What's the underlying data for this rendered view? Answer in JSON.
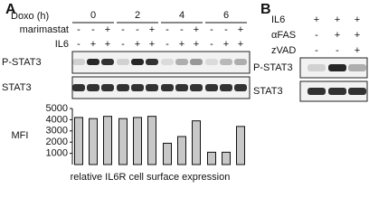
{
  "panel_a": {
    "label": "A",
    "doxo_label": "Doxo (h)",
    "times": [
      "0",
      "2",
      "4",
      "6"
    ],
    "rows": [
      {
        "label": "marimastat",
        "signs": [
          "-",
          "-",
          "+",
          "-",
          "-",
          "+",
          "-",
          "-",
          "+",
          "-",
          "-",
          "+"
        ]
      },
      {
        "label": "IL6",
        "signs": [
          "-",
          "+",
          "+",
          "-",
          "+",
          "+",
          "-",
          "+",
          "+",
          "-",
          "+",
          "+"
        ]
      }
    ],
    "blots": [
      "P-STAT3",
      "STAT3"
    ]
  },
  "chart_data": {
    "type": "bar",
    "y_label": "MFI",
    "x_label": "relative IL6R cell surface expression",
    "values": [
      4200,
      4100,
      4300,
      4100,
      4200,
      4300,
      1900,
      2500,
      3900,
      1100,
      1100,
      3400
    ],
    "color": "#c8c8c8",
    "ylim": [
      0,
      5000
    ],
    "yticks": [
      1000,
      2000,
      3000,
      4000,
      5000
    ]
  },
  "panel_b": {
    "label": "B",
    "rows": [
      {
        "label": "IL6",
        "signs": [
          "+",
          "+",
          "+"
        ]
      },
      {
        "label": "αFAS",
        "signs": [
          "-",
          "+",
          "+"
        ]
      },
      {
        "label": "zVAD",
        "signs": [
          "-",
          "-",
          "+"
        ]
      }
    ],
    "blots": [
      "P-STAT3",
      "STAT3"
    ]
  }
}
